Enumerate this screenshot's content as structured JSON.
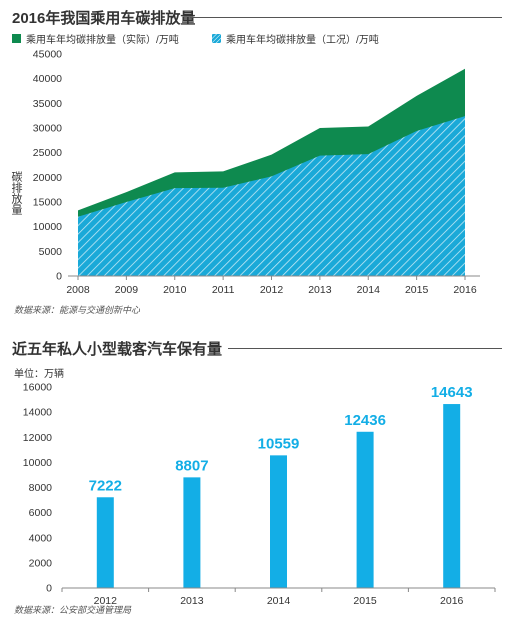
{
  "chart_data": [
    {
      "type": "area",
      "title": "2016年我国乘用车碳排放量",
      "ylabel": "碳排放量",
      "xlabel": "",
      "x": [
        "2008",
        "2009",
        "2010",
        "2011",
        "2012",
        "2013",
        "2014",
        "2015",
        "2016"
      ],
      "series": [
        {
          "name": "乘用车年均碳排放量（实际）/万吨",
          "values": [
            13300,
            17000,
            21000,
            21200,
            24600,
            30000,
            30300,
            36500,
            42000
          ],
          "color": "#0e8a4f"
        },
        {
          "name": "乘用车年均碳排放量（工况）/万吨",
          "values": [
            12000,
            15000,
            17800,
            17900,
            20200,
            24400,
            24700,
            29400,
            32400
          ],
          "color": "#1aa9d8"
        }
      ],
      "ylim": [
        0,
        45000
      ],
      "yticks": [
        0,
        5000,
        10000,
        15000,
        20000,
        25000,
        30000,
        35000,
        40000,
        45000
      ],
      "legend_position": "top-left",
      "grid": false,
      "source": "数据来源：能源与交通创新中心"
    },
    {
      "type": "bar",
      "title": "近五年私人小型载客汽车保有量",
      "unit": "单位：万辆",
      "categories": [
        "2012",
        "2013",
        "2014",
        "2015",
        "2016"
      ],
      "values": [
        7222,
        8807,
        10559,
        12436,
        14643
      ],
      "ylim": [
        0,
        16000
      ],
      "yticks": [
        0,
        2000,
        4000,
        6000,
        8000,
        10000,
        12000,
        14000,
        16000
      ],
      "color": "#13aee6",
      "grid": false,
      "source": "数据来源：公安部交通管理局"
    }
  ]
}
